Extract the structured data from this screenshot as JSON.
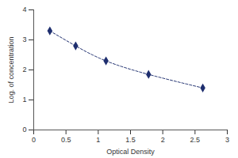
{
  "chart_data": {
    "type": "line",
    "x_label": "Optical Density",
    "y_label": "Log. of concentration",
    "x": [
      0.25,
      0.65,
      1.12,
      1.78,
      2.62
    ],
    "values": [
      3.3,
      2.8,
      2.3,
      1.85,
      1.4
    ],
    "color": "#1f2f6f",
    "marker": "diamond",
    "line_style": "dashed",
    "xlim": [
      0,
      3
    ],
    "xticks": [
      0,
      0.5,
      1,
      1.5,
      2,
      2.5,
      3
    ],
    "ylim": [
      0,
      4
    ],
    "yticks": [
      0,
      1,
      2,
      3,
      4
    ],
    "grid": false
  }
}
